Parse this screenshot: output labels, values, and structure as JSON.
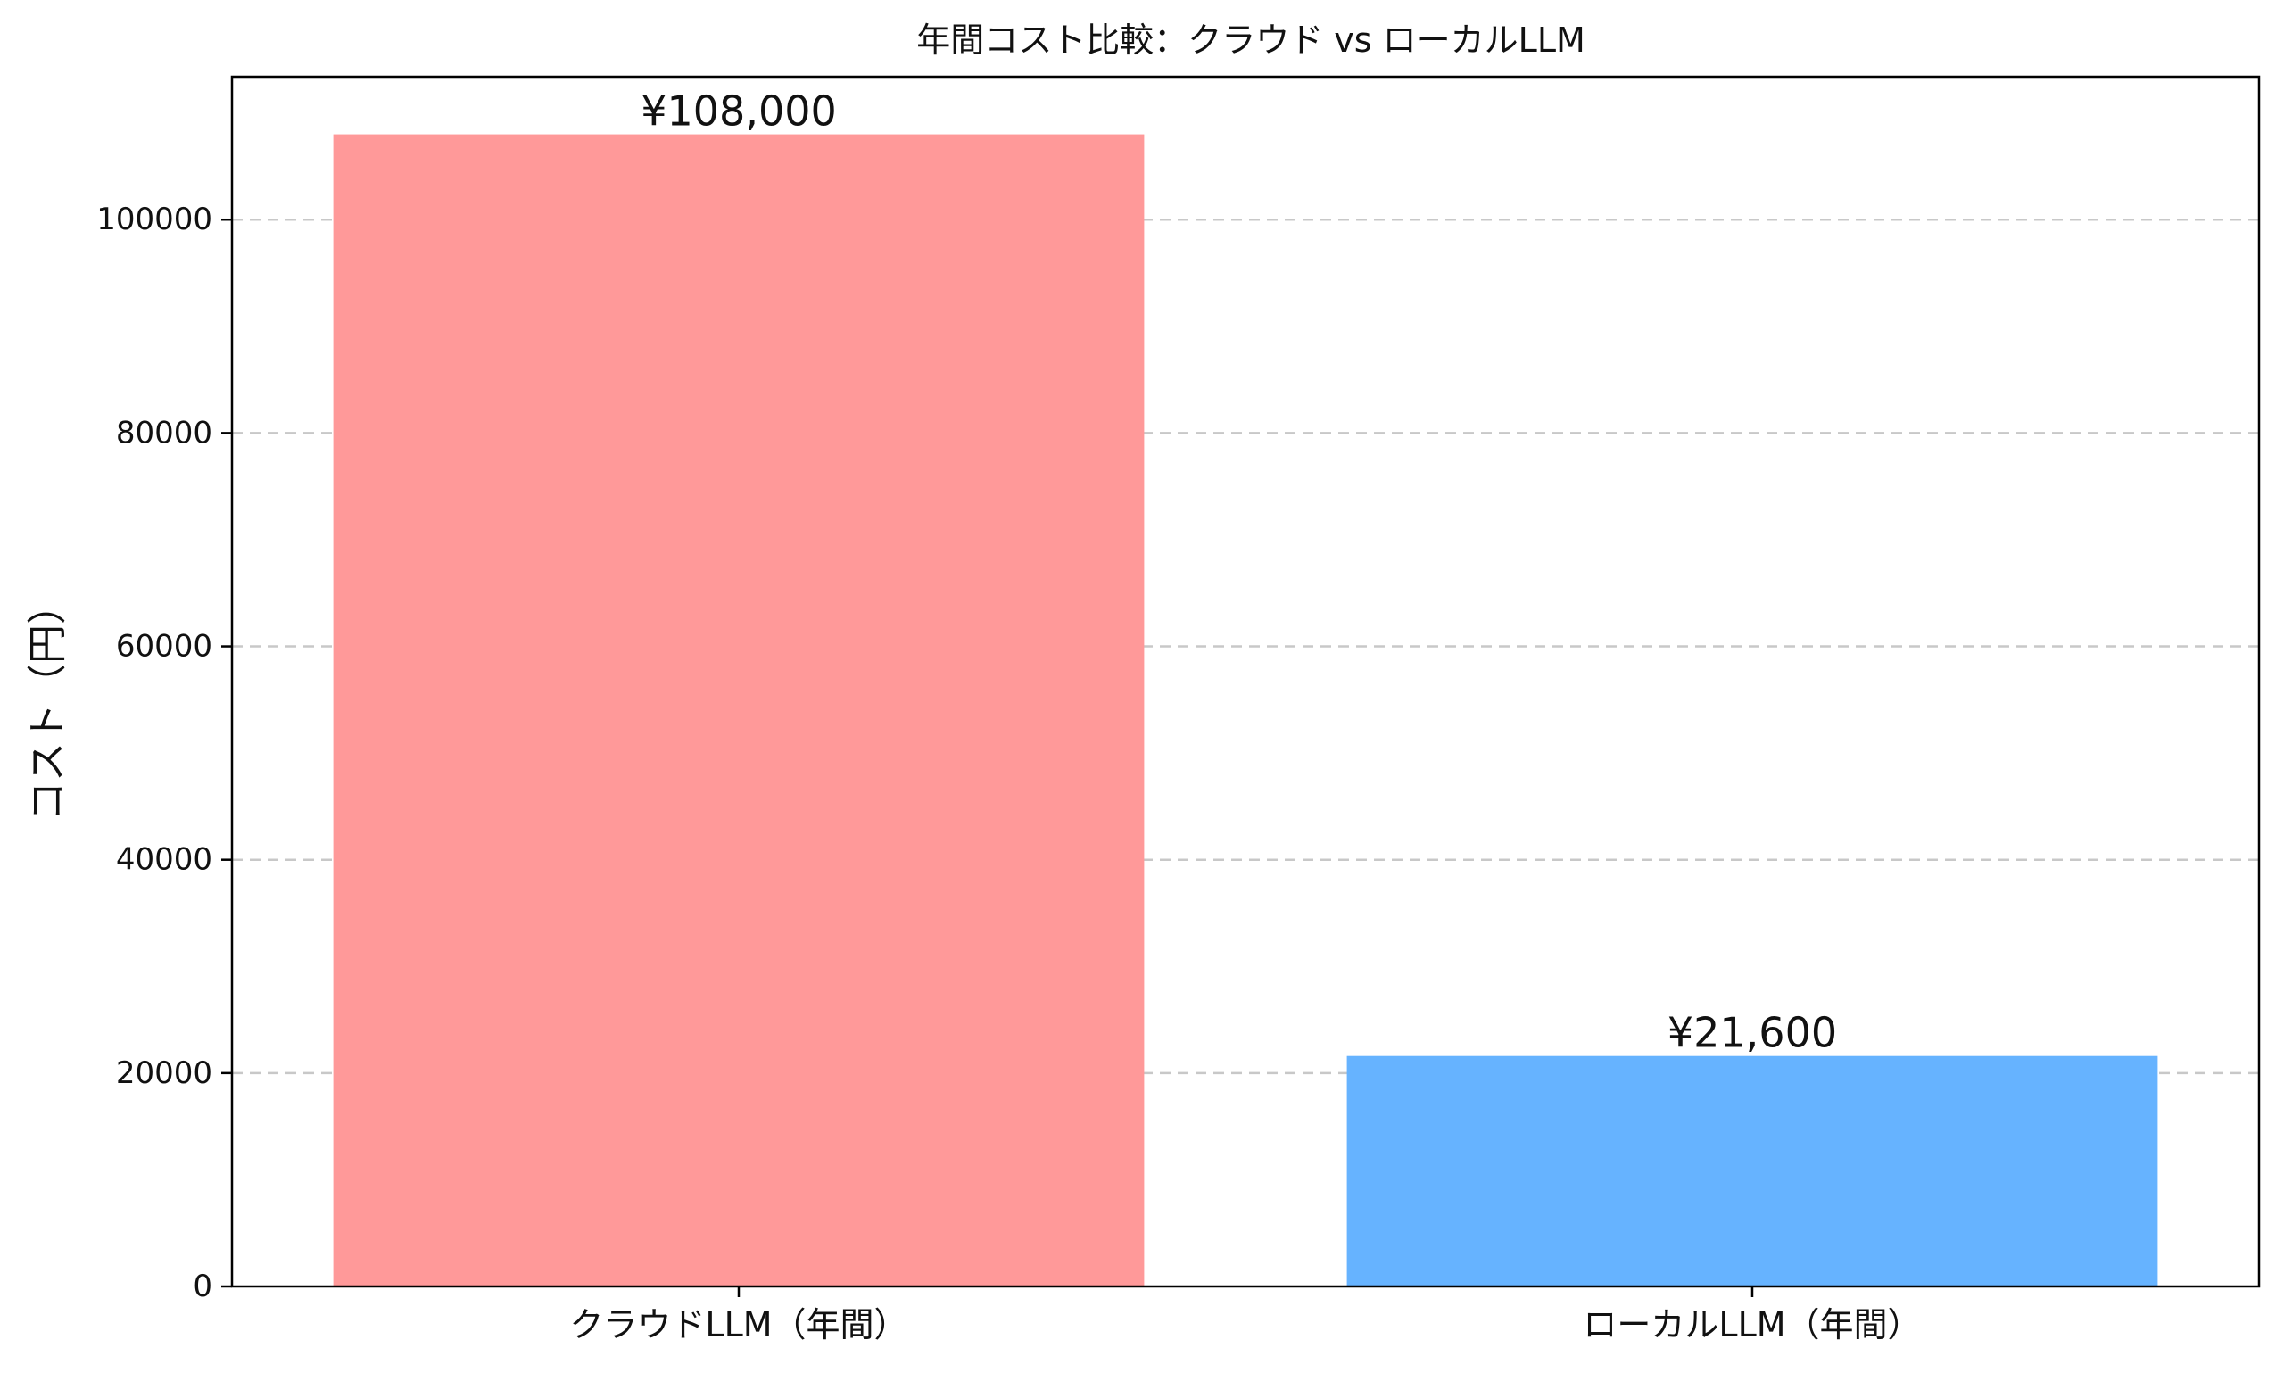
{
  "chart_data": {
    "type": "bar",
    "title": "年間コスト比較：クラウド vs ローカルLLM",
    "xlabel": "",
    "ylabel": "コスト（円）",
    "categories": [
      "クラウドLLM（年間）",
      "ローカルLLM（年間）"
    ],
    "values": [
      108000,
      21600
    ],
    "value_labels": [
      "¥108,000",
      "¥21,600"
    ],
    "colors": [
      "#ff9999",
      "#66b3ff"
    ],
    "ylim": [
      0,
      113400
    ],
    "yticks": [
      0,
      20000,
      40000,
      60000,
      80000,
      100000
    ],
    "ytick_labels": [
      "0",
      "20000",
      "40000",
      "60000",
      "80000",
      "100000"
    ],
    "grid": "y-dashed",
    "legend": "none"
  }
}
